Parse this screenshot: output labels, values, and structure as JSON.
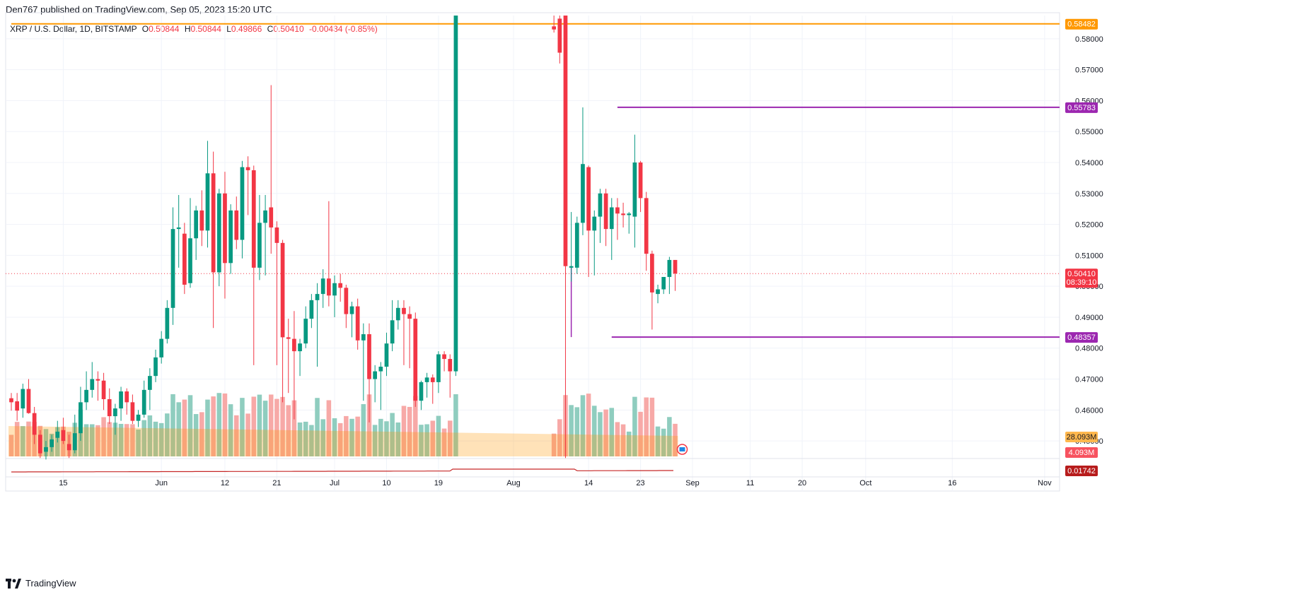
{
  "header": {
    "published": "Den767 published on TradingView.com, Sep 05, 2023 15:20 UTC"
  },
  "legend": {
    "symbol": "XRP / U.S. Dollar, 1D, BITSTAMP",
    "o_label": "O",
    "o": "0.50844",
    "h_label": "H",
    "h": "0.50844",
    "l_label": "L",
    "l": "0.49866",
    "c_label": "C",
    "c": "0.50410",
    "change": "-0.00434 (-0.85%)"
  },
  "footer": {
    "brand": "TradingView"
  },
  "colors": {
    "up": "#089981",
    "down": "#f23645",
    "vol_up": "#8fcdbf",
    "vol_down": "#f7a9a7",
    "orange": "#ff9800",
    "purple": "#9c27b0",
    "grid": "#f0f3fa",
    "axis_text": "#131722"
  },
  "chart_data": {
    "type": "candlestick",
    "price_axis": {
      "min": 0.445,
      "max": 0.5875,
      "ticks": [
        "0.45000",
        "0.46000",
        "0.47000",
        "0.48000",
        "0.49000",
        "0.50000",
        "0.51000",
        "0.52000",
        "0.53000",
        "0.54000",
        "0.55000",
        "0.56000",
        "0.57000",
        "0.58000"
      ]
    },
    "time_axis": {
      "start": "2023-05-06",
      "end": "2023-11-02",
      "ticks": [
        {
          "date": "2023-05-15",
          "label": "15"
        },
        {
          "date": "2023-06-01",
          "label": "Jun"
        },
        {
          "date": "2023-06-12",
          "label": "12"
        },
        {
          "date": "2023-06-21",
          "label": "21"
        },
        {
          "date": "2023-07-01",
          "label": "Jul"
        },
        {
          "date": "2023-07-10",
          "label": "10"
        },
        {
          "date": "2023-07-19",
          "label": "19"
        },
        {
          "date": "2023-08-01",
          "label": "Aug"
        },
        {
          "date": "2023-08-14",
          "label": "14"
        },
        {
          "date": "2023-08-23",
          "label": "23"
        },
        {
          "date": "2023-09-01",
          "label": "Sep"
        },
        {
          "date": "2023-09-11",
          "label": "11"
        },
        {
          "date": "2023-09-20",
          "label": "20"
        },
        {
          "date": "2023-10-01",
          "label": "Oct"
        },
        {
          "date": "2023-10-16",
          "label": "16"
        },
        {
          "date": "2023-11-01",
          "label": "Nov"
        }
      ]
    },
    "horizontal_levels": [
      {
        "price": 0.58482,
        "label": "0.58482",
        "color": "#ff9800",
        "start": "2023-05-06"
      },
      {
        "price": 0.55783,
        "label": "0.55783",
        "color": "#9c27b0",
        "start": "2023-08-19"
      },
      {
        "price": 0.48357,
        "label": "0.48357",
        "color": "#9c27b0",
        "start": "2023-08-18"
      }
    ],
    "last_price": {
      "price": 0.5041,
      "label": "0.50410",
      "countdown": "08:39:10"
    },
    "volume_labels": {
      "ma": "28.093M",
      "last": "4.093M"
    },
    "indicator": {
      "label": "0.01742"
    },
    "candles": [
      {
        "d": "2023-05-06",
        "o": 0.4638,
        "h": 0.4655,
        "l": 0.4598,
        "c": 0.4625
      },
      {
        "d": "2023-05-07",
        "o": 0.4628,
        "h": 0.4655,
        "l": 0.4565,
        "c": 0.4598
      },
      {
        "d": "2023-05-08",
        "o": 0.4605,
        "h": 0.4685,
        "l": 0.4575,
        "c": 0.4668
      },
      {
        "d": "2023-05-09",
        "o": 0.4668,
        "h": 0.47,
        "l": 0.4588,
        "c": 0.459
      },
      {
        "d": "2023-05-10",
        "o": 0.459,
        "h": 0.461,
        "l": 0.449,
        "c": 0.452
      },
      {
        "d": "2023-05-11",
        "o": 0.452,
        "h": 0.4535,
        "l": 0.4445,
        "c": 0.446
      },
      {
        "d": "2023-05-12",
        "o": 0.4465,
        "h": 0.45,
        "l": 0.444,
        "c": 0.448
      },
      {
        "d": "2023-05-13",
        "o": 0.448,
        "h": 0.452,
        "l": 0.4465,
        "c": 0.4505
      },
      {
        "d": "2023-05-14",
        "o": 0.451,
        "h": 0.4565,
        "l": 0.4495,
        "c": 0.453
      },
      {
        "d": "2023-05-15",
        "o": 0.4535,
        "h": 0.4575,
        "l": 0.449,
        "c": 0.45
      },
      {
        "d": "2023-05-16",
        "o": 0.449,
        "h": 0.452,
        "l": 0.4445,
        "c": 0.447
      },
      {
        "d": "2023-05-17",
        "o": 0.447,
        "h": 0.4585,
        "l": 0.446,
        "c": 0.4525
      },
      {
        "d": "2023-05-18",
        "o": 0.4525,
        "h": 0.4675,
        "l": 0.45,
        "c": 0.4625
      },
      {
        "d": "2023-05-19",
        "o": 0.4625,
        "h": 0.4725,
        "l": 0.46,
        "c": 0.4665
      },
      {
        "d": "2023-05-20",
        "o": 0.4665,
        "h": 0.4755,
        "l": 0.464,
        "c": 0.47
      },
      {
        "d": "2023-05-21",
        "o": 0.47,
        "h": 0.4725,
        "l": 0.463,
        "c": 0.4695
      },
      {
        "d": "2023-05-22",
        "o": 0.4695,
        "h": 0.472,
        "l": 0.46,
        "c": 0.4635
      },
      {
        "d": "2023-05-23",
        "o": 0.4635,
        "h": 0.467,
        "l": 0.4555,
        "c": 0.458
      },
      {
        "d": "2023-05-24",
        "o": 0.458,
        "h": 0.462,
        "l": 0.452,
        "c": 0.4605
      },
      {
        "d": "2023-05-25",
        "o": 0.4605,
        "h": 0.4675,
        "l": 0.4565,
        "c": 0.466
      },
      {
        "d": "2023-05-26",
        "o": 0.466,
        "h": 0.467,
        "l": 0.4585,
        "c": 0.4625
      },
      {
        "d": "2023-05-27",
        "o": 0.4625,
        "h": 0.465,
        "l": 0.4555,
        "c": 0.4565
      },
      {
        "d": "2023-05-28",
        "o": 0.4565,
        "h": 0.46,
        "l": 0.4545,
        "c": 0.4585
      },
      {
        "d": "2023-05-29",
        "o": 0.4585,
        "h": 0.4695,
        "l": 0.4575,
        "c": 0.4665
      },
      {
        "d": "2023-05-30",
        "o": 0.4665,
        "h": 0.4735,
        "l": 0.46,
        "c": 0.471
      },
      {
        "d": "2023-05-31",
        "o": 0.471,
        "h": 0.4795,
        "l": 0.469,
        "c": 0.477
      },
      {
        "d": "2023-06-01",
        "o": 0.477,
        "h": 0.4855,
        "l": 0.475,
        "c": 0.483
      },
      {
        "d": "2023-06-02",
        "o": 0.483,
        "h": 0.4955,
        "l": 0.4815,
        "c": 0.493
      },
      {
        "d": "2023-06-03",
        "o": 0.493,
        "h": 0.5255,
        "l": 0.4875,
        "c": 0.5185
      },
      {
        "d": "2023-06-04",
        "o": 0.5185,
        "h": 0.5295,
        "l": 0.506,
        "c": 0.519
      },
      {
        "d": "2023-06-05",
        "o": 0.517,
        "h": 0.5205,
        "l": 0.4975,
        "c": 0.5005
      },
      {
        "d": "2023-06-06",
        "o": 0.501,
        "h": 0.5285,
        "l": 0.4995,
        "c": 0.5155
      },
      {
        "d": "2023-06-07",
        "o": 0.5155,
        "h": 0.526,
        "l": 0.5085,
        "c": 0.5245
      },
      {
        "d": "2023-06-08",
        "o": 0.5245,
        "h": 0.531,
        "l": 0.513,
        "c": 0.518
      },
      {
        "d": "2023-06-09",
        "o": 0.518,
        "h": 0.547,
        "l": 0.5125,
        "c": 0.5365
      },
      {
        "d": "2023-06-10",
        "o": 0.5365,
        "h": 0.5435,
        "l": 0.4865,
        "c": 0.5045
      },
      {
        "d": "2023-06-11",
        "o": 0.5045,
        "h": 0.5315,
        "l": 0.5,
        "c": 0.53
      },
      {
        "d": "2023-06-12",
        "o": 0.53,
        "h": 0.537,
        "l": 0.496,
        "c": 0.5075
      },
      {
        "d": "2023-06-13",
        "o": 0.5075,
        "h": 0.5265,
        "l": 0.504,
        "c": 0.5245
      },
      {
        "d": "2023-06-14",
        "o": 0.5245,
        "h": 0.529,
        "l": 0.512,
        "c": 0.515
      },
      {
        "d": "2023-06-15",
        "o": 0.515,
        "h": 0.5405,
        "l": 0.509,
        "c": 0.5385
      },
      {
        "d": "2023-06-16",
        "o": 0.5385,
        "h": 0.542,
        "l": 0.523,
        "c": 0.5375
      },
      {
        "d": "2023-06-17",
        "o": 0.5375,
        "h": 0.539,
        "l": 0.4745,
        "c": 0.506
      },
      {
        "d": "2023-06-18",
        "o": 0.506,
        "h": 0.5295,
        "l": 0.502,
        "c": 0.5205
      },
      {
        "d": "2023-06-19",
        "o": 0.5205,
        "h": 0.5295,
        "l": 0.5035,
        "c": 0.5245
      },
      {
        "d": "2023-06-20",
        "o": 0.5255,
        "h": 0.565,
        "l": 0.5105,
        "c": 0.519
      },
      {
        "d": "2023-06-21",
        "o": 0.519,
        "h": 0.521,
        "l": 0.4745,
        "c": 0.514
      },
      {
        "d": "2023-06-22",
        "o": 0.514,
        "h": 0.515,
        "l": 0.4625,
        "c": 0.4835
      },
      {
        "d": "2023-06-23",
        "o": 0.4835,
        "h": 0.4895,
        "l": 0.4655,
        "c": 0.483
      },
      {
        "d": "2023-06-24",
        "o": 0.483,
        "h": 0.492,
        "l": 0.457,
        "c": 0.479
      },
      {
        "d": "2023-06-25",
        "o": 0.479,
        "h": 0.483,
        "l": 0.471,
        "c": 0.4815
      },
      {
        "d": "2023-06-26",
        "o": 0.4815,
        "h": 0.4935,
        "l": 0.48,
        "c": 0.4895
      },
      {
        "d": "2023-06-27",
        "o": 0.4895,
        "h": 0.4975,
        "l": 0.4865,
        "c": 0.4955
      },
      {
        "d": "2023-06-28",
        "o": 0.4955,
        "h": 0.501,
        "l": 0.474,
        "c": 0.4975
      },
      {
        "d": "2023-06-29",
        "o": 0.4975,
        "h": 0.5055,
        "l": 0.493,
        "c": 0.5025
      },
      {
        "d": "2023-06-30",
        "o": 0.5025,
        "h": 0.5275,
        "l": 0.4935,
        "c": 0.497
      },
      {
        "d": "2023-07-01",
        "o": 0.497,
        "h": 0.5035,
        "l": 0.49,
        "c": 0.501
      },
      {
        "d": "2023-07-02",
        "o": 0.501,
        "h": 0.504,
        "l": 0.495,
        "c": 0.4995
      },
      {
        "d": "2023-07-03",
        "o": 0.4995,
        "h": 0.5005,
        "l": 0.4865,
        "c": 0.491
      },
      {
        "d": "2023-07-04",
        "o": 0.491,
        "h": 0.495,
        "l": 0.4835,
        "c": 0.4935
      },
      {
        "d": "2023-07-05",
        "o": 0.4935,
        "h": 0.496,
        "l": 0.4795,
        "c": 0.4825
      },
      {
        "d": "2023-07-06",
        "o": 0.4825,
        "h": 0.488,
        "l": 0.463,
        "c": 0.4845
      },
      {
        "d": "2023-07-07",
        "o": 0.4845,
        "h": 0.488,
        "l": 0.456,
        "c": 0.47
      },
      {
        "d": "2023-07-08",
        "o": 0.47,
        "h": 0.4745,
        "l": 0.4625,
        "c": 0.4725
      },
      {
        "d": "2023-07-09",
        "o": 0.4725,
        "h": 0.4755,
        "l": 0.46,
        "c": 0.474
      },
      {
        "d": "2023-07-10",
        "o": 0.474,
        "h": 0.485,
        "l": 0.471,
        "c": 0.4815
      },
      {
        "d": "2023-07-11",
        "o": 0.4815,
        "h": 0.4955,
        "l": 0.479,
        "c": 0.489
      },
      {
        "d": "2023-07-12",
        "o": 0.489,
        "h": 0.4955,
        "l": 0.486,
        "c": 0.493
      },
      {
        "d": "2023-07-13",
        "o": 0.493,
        "h": 0.4955,
        "l": 0.4745,
        "c": 0.491
      },
      {
        "d": "2023-07-14",
        "o": 0.491,
        "h": 0.4935,
        "l": 0.4735,
        "c": 0.4895
      },
      {
        "d": "2023-07-15",
        "o": 0.4895,
        "h": 0.4915,
        "l": 0.461,
        "c": 0.463
      },
      {
        "d": "2023-07-16",
        "o": 0.463,
        "h": 0.4695,
        "l": 0.46,
        "c": 0.469
      },
      {
        "d": "2023-07-17",
        "o": 0.469,
        "h": 0.472,
        "l": 0.464,
        "c": 0.4705
      },
      {
        "d": "2023-07-18",
        "o": 0.4705,
        "h": 0.4715,
        "l": 0.462,
        "c": 0.469
      },
      {
        "d": "2023-07-19",
        "o": 0.469,
        "h": 0.479,
        "l": 0.4655,
        "c": 0.478
      },
      {
        "d": "2023-07-20",
        "o": 0.478,
        "h": 0.479,
        "l": 0.4725,
        "c": 0.4765
      },
      {
        "d": "2023-07-21",
        "o": 0.4765,
        "h": 0.478,
        "l": 0.464,
        "c": 0.4725
      },
      {
        "d": "2023-07-22",
        "o": 0.4725,
        "h": 0.5875,
        "l": 0.471,
        "c": 0.5875
      }
    ],
    "candles_b": [
      {
        "d": "2023-08-08",
        "o": 0.584,
        "h": 0.5875,
        "l": 0.582,
        "c": 0.583
      },
      {
        "d": "2023-08-09",
        "o": 0.5865,
        "h": 0.5875,
        "l": 0.572,
        "c": 0.5755
      },
      {
        "d": "2023-08-10",
        "o": 0.5875,
        "h": 0.5875,
        "l": 0.4445,
        "c": 0.5065
      },
      {
        "d": "2023-08-11",
        "o": 0.506,
        "h": 0.524,
        "l": 0.5015,
        "c": 0.5065
      },
      {
        "d": "2023-08-12",
        "o": 0.506,
        "h": 0.5225,
        "l": 0.504,
        "c": 0.5205
      },
      {
        "d": "2023-08-13",
        "o": 0.5205,
        "h": 0.5578,
        "l": 0.5165,
        "c": 0.5395
      },
      {
        "d": "2023-08-14",
        "o": 0.5385,
        "h": 0.539,
        "l": 0.503,
        "c": 0.518
      },
      {
        "d": "2023-08-15",
        "o": 0.518,
        "h": 0.5245,
        "l": 0.5035,
        "c": 0.5225
      },
      {
        "d": "2023-08-16",
        "o": 0.5225,
        "h": 0.5315,
        "l": 0.514,
        "c": 0.53
      },
      {
        "d": "2023-08-17",
        "o": 0.53,
        "h": 0.5315,
        "l": 0.513,
        "c": 0.5185
      },
      {
        "d": "2023-08-18",
        "o": 0.5185,
        "h": 0.5285,
        "l": 0.5085,
        "c": 0.5255
      },
      {
        "d": "2023-08-19",
        "o": 0.5255,
        "h": 0.5285,
        "l": 0.515,
        "c": 0.5235
      },
      {
        "d": "2023-08-20",
        "o": 0.5235,
        "h": 0.527,
        "l": 0.519,
        "c": 0.523
      },
      {
        "d": "2023-08-21",
        "o": 0.523,
        "h": 0.524,
        "l": 0.517,
        "c": 0.5235
      },
      {
        "d": "2023-08-22",
        "o": 0.5225,
        "h": 0.549,
        "l": 0.5125,
        "c": 0.54
      },
      {
        "d": "2023-08-23",
        "o": 0.54,
        "h": 0.5405,
        "l": 0.524,
        "c": 0.5285
      },
      {
        "d": "2023-08-24",
        "o": 0.5285,
        "h": 0.5305,
        "l": 0.505,
        "c": 0.5105
      },
      {
        "d": "2023-08-25",
        "o": 0.5105,
        "h": 0.5115,
        "l": 0.486,
        "c": 0.498
      },
      {
        "d": "2023-08-26",
        "o": 0.4975,
        "h": 0.5005,
        "l": 0.4945,
        "c": 0.499
      },
      {
        "d": "2023-08-27",
        "o": 0.499,
        "h": 0.5025,
        "l": 0.4975,
        "c": 0.503
      },
      {
        "d": "2023-08-28",
        "o": 0.503,
        "h": 0.5095,
        "l": 0.4975,
        "c": 0.5085
      },
      {
        "d": "2023-08-29",
        "o": 0.5085,
        "h": 0.5085,
        "l": 0.4985,
        "c": 0.5041
      }
    ]
  }
}
